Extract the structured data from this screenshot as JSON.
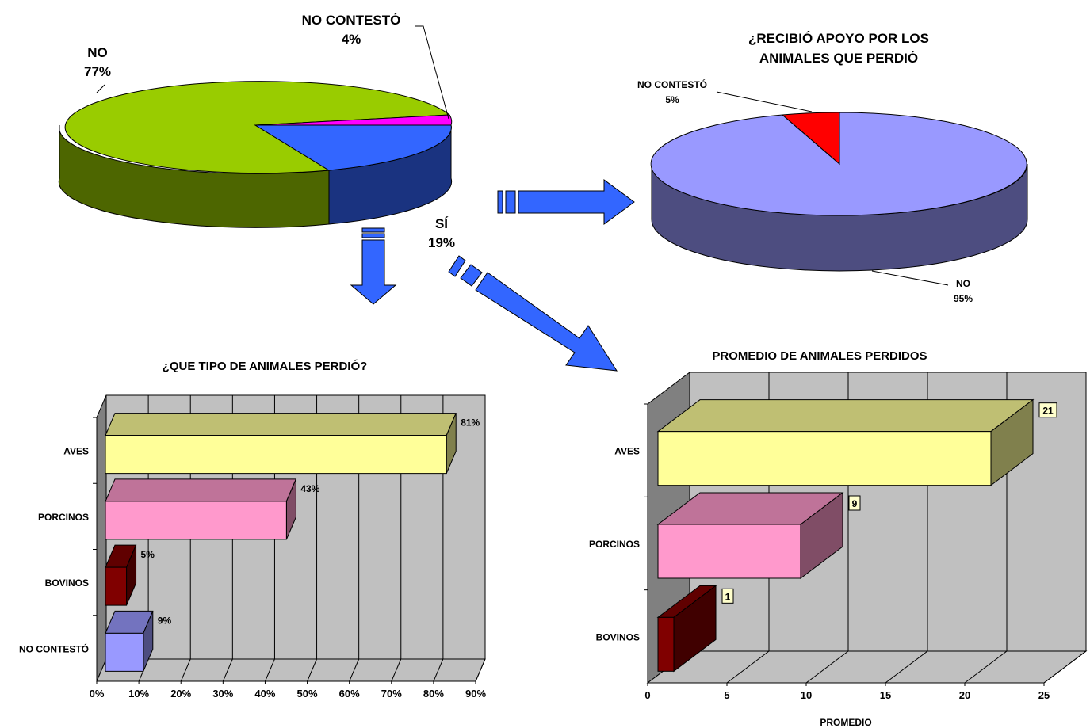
{
  "chart_data": [
    {
      "type": "pie",
      "title": "",
      "slices": [
        {
          "label": "NO",
          "value": 77,
          "display": "77%",
          "color": "#99cc00"
        },
        {
          "label": "SÍ",
          "value": 19,
          "display": "19%",
          "color": "#3366ff"
        },
        {
          "label": "NO CONTESTÓ",
          "value": 4,
          "display": "4%",
          "color": "#ff00ff"
        }
      ],
      "style": "3d"
    },
    {
      "type": "pie",
      "title": "¿RECIBIÓ APOYO POR LOS ANIMALES QUE PERDIÓ",
      "title_lines": [
        "¿RECIBIÓ APOYO POR LOS",
        "ANIMALES QUE PERDIÓ"
      ],
      "slices": [
        {
          "label": "NO",
          "value": 95,
          "display": "95%",
          "color": "#9999ff"
        },
        {
          "label": "NO CONTESTÓ",
          "value": 5,
          "display": "5%",
          "color": "#ff0000"
        }
      ],
      "style": "3d"
    },
    {
      "type": "bar",
      "orientation": "horizontal",
      "title": "¿QUE TIPO DE ANIMALES PERDIÓ?",
      "categories": [
        "AVES",
        "PORCINOS",
        "BOVINOS",
        "NO CONTESTÓ"
      ],
      "values": [
        81,
        43,
        5,
        9
      ],
      "value_labels": [
        "81%",
        "43%",
        "5%",
        "9%"
      ],
      "colors": [
        "#ffff99",
        "#ff99cc",
        "#800000",
        "#9999ff"
      ],
      "xlim": [
        0,
        90
      ],
      "ticks": [
        "0%",
        "10%",
        "20%",
        "30%",
        "40%",
        "50%",
        "60%",
        "70%",
        "80%",
        "90%"
      ],
      "xlabel": "",
      "ylabel": "",
      "grid": true,
      "style": "3d"
    },
    {
      "type": "bar",
      "orientation": "horizontal",
      "title": "PROMEDIO DE ANIMALES PERDIDOS",
      "categories": [
        "AVES",
        "PORCINOS",
        "BOVINOS"
      ],
      "values": [
        21,
        9,
        1
      ],
      "value_labels": [
        "21",
        "9",
        "1"
      ],
      "colors": [
        "#ffff99",
        "#ff99cc",
        "#800000"
      ],
      "xlim": [
        0,
        25
      ],
      "ticks": [
        "0",
        "5",
        "10",
        "15",
        "20",
        "25"
      ],
      "xlabel": "PROMEDIO",
      "ylabel": "",
      "grid": true,
      "style": "3d"
    }
  ],
  "arrow_color": "#3366ff"
}
